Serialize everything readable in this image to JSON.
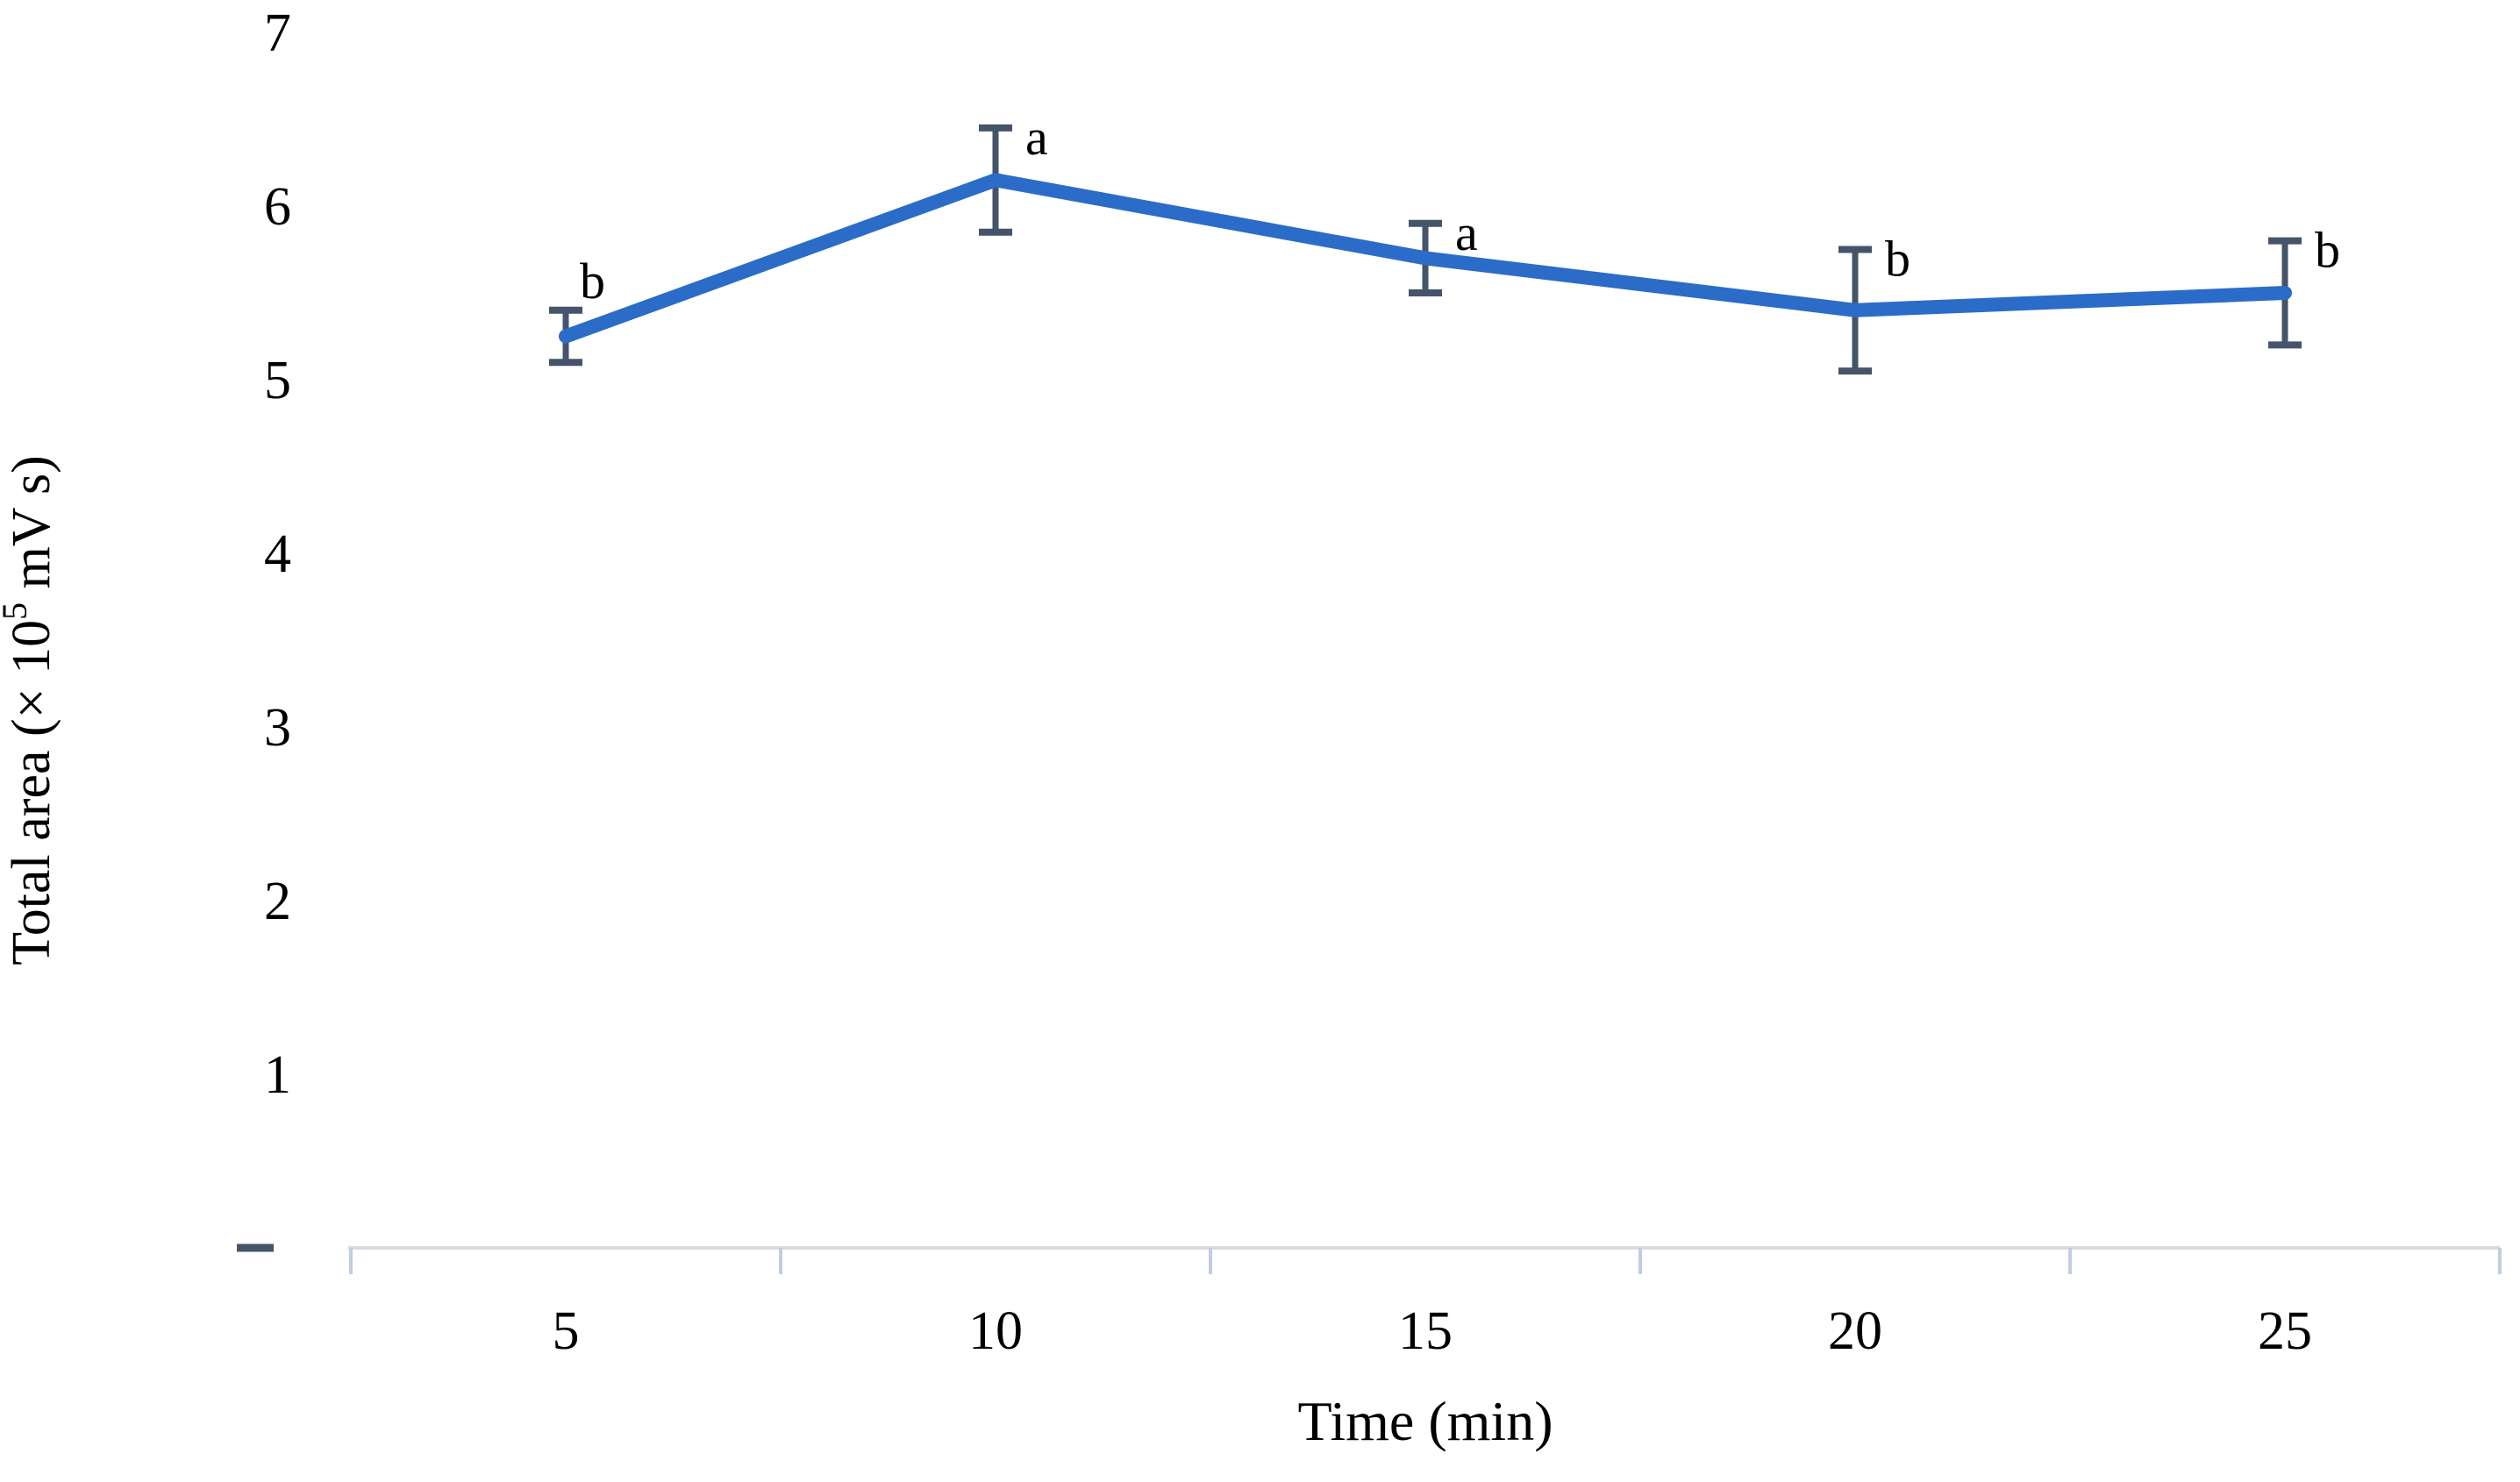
{
  "chart_data": {
    "type": "line",
    "title": "",
    "xlabel": "Time (min)",
    "ylabel": "Total area (× 10⁵ mV s)",
    "ylabel_rich": {
      "prefix": "Total area (× 10",
      "superscript": "5",
      "suffix": " mV s)"
    },
    "categories": [
      "5",
      "10",
      "15",
      "20",
      "25"
    ],
    "x_values": [
      5,
      10,
      15,
      20,
      25
    ],
    "series": [
      {
        "name": "Total area",
        "values": [
          5.25,
          6.15,
          5.7,
          5.4,
          5.5
        ],
        "error_bars": [
          0.15,
          0.3,
          0.2,
          0.35,
          0.3
        ],
        "point_labels": [
          "b",
          "a",
          "a",
          "b",
          "b"
        ]
      }
    ],
    "yticks": [
      {
        "value": 7,
        "label": "7"
      },
      {
        "value": 6,
        "label": "6"
      },
      {
        "value": 5,
        "label": "5"
      },
      {
        "value": 4,
        "label": "4"
      },
      {
        "value": 3,
        "label": "3"
      },
      {
        "value": 2,
        "label": "2"
      },
      {
        "value": 1,
        "label": "1"
      },
      {
        "value": 0,
        "label": "-"
      }
    ],
    "ylim": [
      0,
      7
    ],
    "grid": false,
    "legend": false,
    "colors": {
      "line": "#2b6cc8",
      "error_bar": "#44546a",
      "axis_line": "#d6dbe4",
      "tick_mark": "#c3cde0",
      "zero_dash": "#44546a",
      "text": "#000000"
    }
  }
}
